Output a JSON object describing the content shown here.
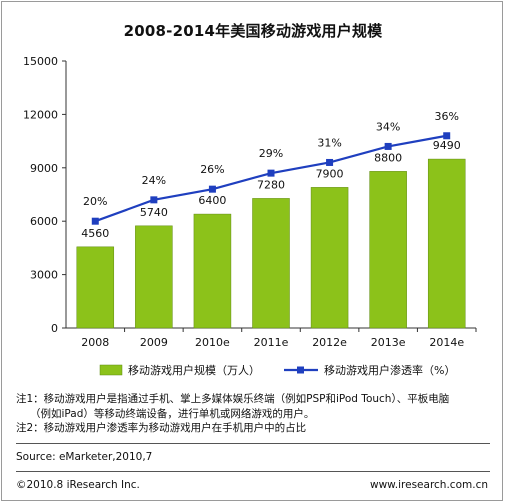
{
  "title": "2008-2014年美国移动游戏用户规模",
  "chart_data": {
    "type": "bar",
    "categories": [
      "2008",
      "2009",
      "2010e",
      "2011e",
      "2012e",
      "2013e",
      "2014e"
    ],
    "ylim": [
      0,
      15000
    ],
    "yticks": [
      "0",
      "3000",
      "6000",
      "9000",
      "12000",
      "15000"
    ],
    "series": [
      {
        "name": "移动游戏用户规模（万人）",
        "type": "bar",
        "color": "#8cc21a",
        "values": [
          4560,
          5740,
          6400,
          7280,
          7900,
          8800,
          9490
        ],
        "labels": [
          "4560",
          "5740",
          "6400",
          "7280",
          "7900",
          "8800",
          "9490"
        ]
      },
      {
        "name": "移动游戏用户渗透率（%）",
        "type": "line",
        "color": "#1f3fbf",
        "values": [
          20,
          24,
          26,
          29,
          31,
          34,
          36
        ],
        "labels": [
          "20%",
          "24%",
          "26%",
          "29%",
          "31%",
          "34%",
          "36%"
        ]
      }
    ],
    "grid": false,
    "legend": "bottom"
  },
  "notes": {
    "line1": "注1：移动游戏用户是指通过手机、掌上多媒体娱乐终端（例如PSP和iPod Touch）、平板电脑",
    "line2": "（例如iPad）等移动终端设备，进行单机或网络游戏的用户。",
    "line3": "注2：移动游戏用户渗透率为移动游戏用户在手机用户中的占比"
  },
  "source": "Source: eMarketer,2010,7",
  "copyright": "©2010.8 iResearch Inc.",
  "website": "www.iresearch.com.cn"
}
